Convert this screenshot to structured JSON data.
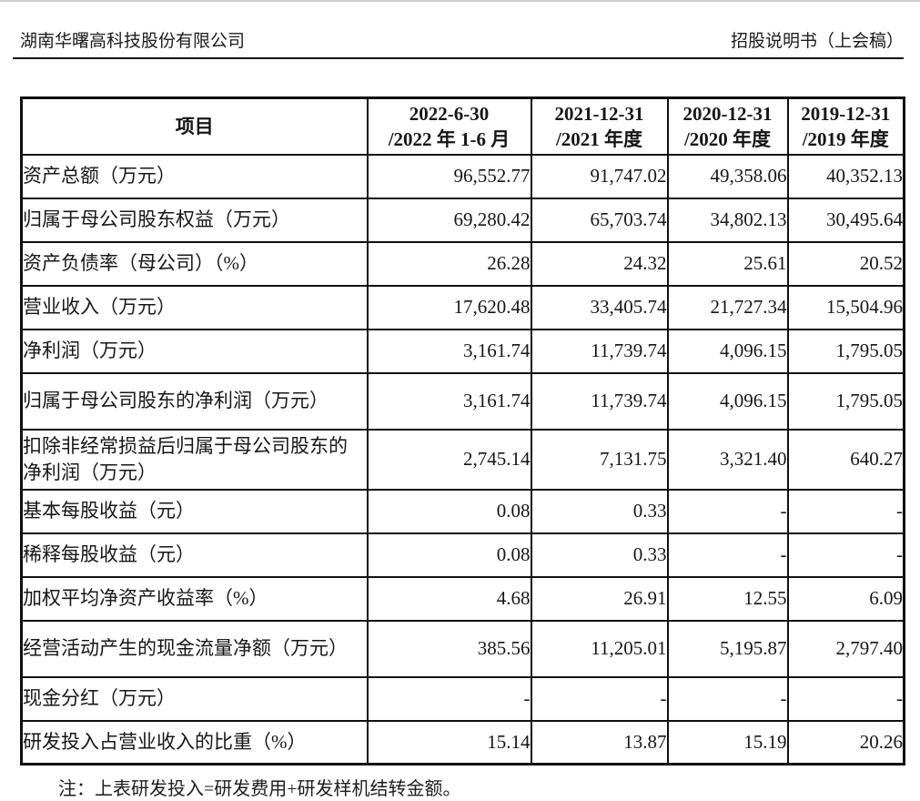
{
  "page_header": {
    "company_name": "湖南华曙高科技股份有限公司",
    "document_title": "招股说明书（上会稿）"
  },
  "table": {
    "item_header": "项目",
    "periods": [
      {
        "date": "2022-6-30",
        "period": "/2022 年 1-6 月"
      },
      {
        "date": "2021-12-31",
        "period": "/2021 年度"
      },
      {
        "date": "2020-12-31",
        "period": "/2020 年度"
      },
      {
        "date": "2019-12-31",
        "period": "/2019 年度"
      }
    ],
    "rows": [
      {
        "label": "资产总额（万元）",
        "values": [
          "96,552.77",
          "91,747.02",
          "49,358.06",
          "40,352.13"
        ]
      },
      {
        "label": "归属于母公司股东权益（万元）",
        "values": [
          "69,280.42",
          "65,703.74",
          "34,802.13",
          "30,495.64"
        ]
      },
      {
        "label": "资产负债率（母公司）（%）",
        "values": [
          "26.28",
          "24.32",
          "25.61",
          "20.52"
        ]
      },
      {
        "label": "营业收入（万元）",
        "values": [
          "17,620.48",
          "33,405.74",
          "21,727.34",
          "15,504.96"
        ]
      },
      {
        "label": "净利润（万元）",
        "values": [
          "3,161.74",
          "11,739.74",
          "4,096.15",
          "1,795.05"
        ]
      },
      {
        "label": "归属于母公司股东的净利润（万元）",
        "values": [
          "3,161.74",
          "11,739.74",
          "4,096.15",
          "1,795.05"
        ]
      },
      {
        "label": "扣除非经常损益后归属于母公司股东的净利润（万元）",
        "values": [
          "2,745.14",
          "7,131.75",
          "3,321.40",
          "640.27"
        ]
      },
      {
        "label": "基本每股收益（元）",
        "values": [
          "0.08",
          "0.33",
          "-",
          "-"
        ]
      },
      {
        "label": "稀释每股收益（元）",
        "values": [
          "0.08",
          "0.33",
          "-",
          "-"
        ]
      },
      {
        "label": "加权平均净资产收益率（%）",
        "values": [
          "4.68",
          "26.91",
          "12.55",
          "6.09"
        ]
      },
      {
        "label": "经营活动产生的现金流量净额（万元）",
        "values": [
          "385.56",
          "11,205.01",
          "5,195.87",
          "2,797.40"
        ]
      },
      {
        "label": "现金分红（万元）",
        "values": [
          "-",
          "-",
          "-",
          "-"
        ]
      },
      {
        "label": "研发投入占营业收入的比重（%）",
        "values": [
          "15.14",
          "13.87",
          "15.19",
          "20.26"
        ]
      }
    ]
  },
  "footnote": "注：上表研发投入=研发费用+研发样机结转金额。"
}
